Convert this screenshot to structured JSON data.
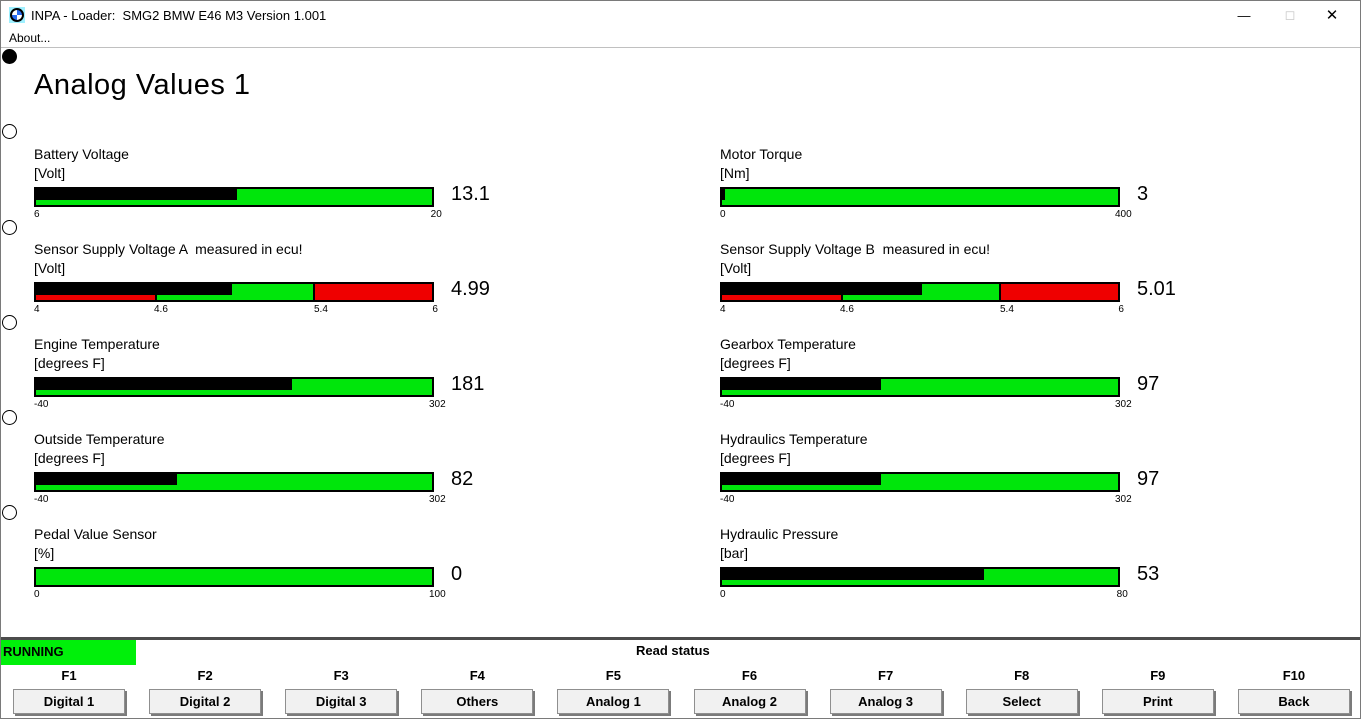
{
  "window": {
    "title": "INPA - Loader:  SMG2 BMW E46 M3 Version 1.001",
    "menu": {
      "about_label": "About..."
    },
    "controls": {
      "minimize": "—",
      "maximize": "◻",
      "close": "✕"
    }
  },
  "page": {
    "heading": "Analog Values 1"
  },
  "colors": {
    "bar_green": "#00e60b",
    "bar_red": "#ef0000",
    "indicator_black": "#000000",
    "running_green": "#00f00a"
  },
  "nav_dots": [
    "filled",
    "empty",
    "empty",
    "empty",
    "empty",
    "empty"
  ],
  "gauges": {
    "left": [
      {
        "name": "battery-voltage",
        "label": "Battery Voltage",
        "unit": "[Volt]",
        "min": 6,
        "max": 20,
        "value": 13.1,
        "display": "13.1",
        "ticks": [
          {
            "v": 6,
            "label": "6"
          },
          {
            "v": 20,
            "label": "20"
          }
        ],
        "zones": [
          {
            "from": 6,
            "to": 20,
            "color": "green"
          }
        ]
      },
      {
        "name": "sensor-supply-voltage-a",
        "label": "Sensor Supply Voltage A  measured in ecu!",
        "unit": "[Volt]",
        "min": 4,
        "max": 6,
        "value": 4.99,
        "display": "4.99",
        "ticks": [
          {
            "v": 4,
            "label": "4"
          },
          {
            "v": 4.6,
            "label": "4.6"
          },
          {
            "v": 5.4,
            "label": "5.4"
          },
          {
            "v": 6,
            "label": "6"
          }
        ],
        "zones": [
          {
            "from": 4,
            "to": 4.6,
            "color": "red"
          },
          {
            "from": 4.6,
            "to": 5.4,
            "color": "green"
          },
          {
            "from": 5.4,
            "to": 6,
            "color": "red"
          }
        ]
      },
      {
        "name": "engine-temperature",
        "label": "Engine Temperature",
        "unit": "[degrees F]",
        "min": -40,
        "max": 302,
        "value": 181,
        "display": "181",
        "ticks": [
          {
            "v": -40,
            "label": "-40"
          },
          {
            "v": 302,
            "label": "302"
          }
        ],
        "zones": [
          {
            "from": -40,
            "to": 302,
            "color": "green"
          }
        ]
      },
      {
        "name": "outside-temperature",
        "label": "Outside Temperature",
        "unit": "[degrees F]",
        "min": -40,
        "max": 302,
        "value": 82,
        "display": "82",
        "ticks": [
          {
            "v": -40,
            "label": "-40"
          },
          {
            "v": 302,
            "label": "302"
          }
        ],
        "zones": [
          {
            "from": -40,
            "to": 302,
            "color": "green"
          }
        ]
      },
      {
        "name": "pedal-value-sensor",
        "label": "Pedal Value Sensor",
        "unit": "[%]",
        "min": 0,
        "max": 100,
        "value": 0,
        "display": "0",
        "ticks": [
          {
            "v": 0,
            "label": "0"
          },
          {
            "v": 100,
            "label": "100"
          }
        ],
        "zones": [
          {
            "from": 0,
            "to": 100,
            "color": "green"
          }
        ]
      }
    ],
    "right": [
      {
        "name": "motor-torque",
        "label": "Motor Torque",
        "unit": "[Nm]",
        "min": 0,
        "max": 400,
        "value": 3,
        "display": "3",
        "ticks": [
          {
            "v": 0,
            "label": "0"
          },
          {
            "v": 400,
            "label": "400"
          }
        ],
        "zones": [
          {
            "from": 0,
            "to": 400,
            "color": "green"
          }
        ]
      },
      {
        "name": "sensor-supply-voltage-b",
        "label": "Sensor Supply Voltage B  measured in ecu!",
        "unit": "[Volt]",
        "min": 4,
        "max": 6,
        "value": 5.01,
        "display": "5.01",
        "ticks": [
          {
            "v": 4,
            "label": "4"
          },
          {
            "v": 4.6,
            "label": "4.6"
          },
          {
            "v": 5.4,
            "label": "5.4"
          },
          {
            "v": 6,
            "label": "6"
          }
        ],
        "zones": [
          {
            "from": 4,
            "to": 4.6,
            "color": "red"
          },
          {
            "from": 4.6,
            "to": 5.4,
            "color": "green"
          },
          {
            "from": 5.4,
            "to": 6,
            "color": "red"
          }
        ]
      },
      {
        "name": "gearbox-temperature",
        "label": "Gearbox Temperature",
        "unit": "[degrees F]",
        "min": -40,
        "max": 302,
        "value": 97,
        "display": "97",
        "ticks": [
          {
            "v": -40,
            "label": "-40"
          },
          {
            "v": 302,
            "label": "302"
          }
        ],
        "zones": [
          {
            "from": -40,
            "to": 302,
            "color": "green"
          }
        ]
      },
      {
        "name": "hydraulics-temperature",
        "label": "Hydraulics Temperature",
        "unit": "[degrees F]",
        "min": -40,
        "max": 302,
        "value": 97,
        "display": "97",
        "ticks": [
          {
            "v": -40,
            "label": "-40"
          },
          {
            "v": 302,
            "label": "302"
          }
        ],
        "zones": [
          {
            "from": -40,
            "to": 302,
            "color": "green"
          }
        ]
      },
      {
        "name": "hydraulic-pressure",
        "label": "Hydraulic Pressure",
        "unit": "[bar]",
        "min": 0,
        "max": 80,
        "value": 53,
        "display": "53",
        "ticks": [
          {
            "v": 0,
            "label": "0"
          },
          {
            "v": 80,
            "label": "80"
          }
        ],
        "zones": [
          {
            "from": 0,
            "to": 80,
            "color": "green"
          }
        ]
      }
    ]
  },
  "status": {
    "running_label": "RUNNING",
    "read_status_label": "Read status"
  },
  "function_keys": [
    {
      "key": "F1",
      "label": "Digital 1"
    },
    {
      "key": "F2",
      "label": "Digital 2"
    },
    {
      "key": "F3",
      "label": "Digital 3"
    },
    {
      "key": "F4",
      "label": "Others"
    },
    {
      "key": "F5",
      "label": "Analog 1"
    },
    {
      "key": "F6",
      "label": "Analog 2"
    },
    {
      "key": "F7",
      "label": "Analog 3"
    },
    {
      "key": "F8",
      "label": "Select"
    },
    {
      "key": "F9",
      "label": "Print"
    },
    {
      "key": "F10",
      "label": "Back"
    }
  ]
}
